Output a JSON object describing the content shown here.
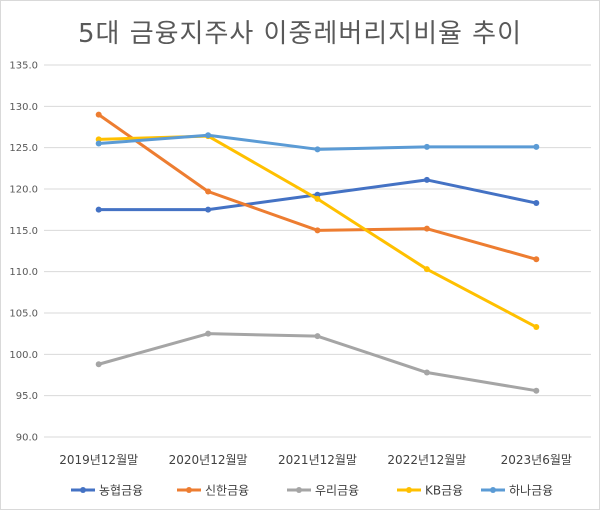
{
  "chart_data": {
    "type": "line",
    "title": "5대 금융지주사 이중레버리지비율 추이",
    "categories": [
      "2019년12월말",
      "2020년12월말",
      "2021년12월말",
      "2022년12월말",
      "2023년6월말"
    ],
    "ylim": [
      90,
      135
    ],
    "yticks": [
      "135.0",
      "130.0",
      "125.0",
      "120.0",
      "115.0",
      "110.0",
      "105.0",
      "100.0",
      "95.0",
      "90.0"
    ],
    "grid": true,
    "legend": "bottom",
    "series": [
      {
        "name": "농협금융",
        "color": "#4472c4",
        "values": [
          117.5,
          117.5,
          119.3,
          121.1,
          118.3
        ]
      },
      {
        "name": "신한금융",
        "color": "#ed7d31",
        "values": [
          129.0,
          119.7,
          115.0,
          115.2,
          111.5
        ]
      },
      {
        "name": "우리금융",
        "color": "#a5a5a5",
        "values": [
          98.8,
          102.5,
          102.2,
          97.8,
          95.6
        ]
      },
      {
        "name": "KB금융",
        "color": "#ffc000",
        "values": [
          126.0,
          126.4,
          118.8,
          110.3,
          103.3
        ]
      },
      {
        "name": "하나금융",
        "color": "#5b9bd5",
        "values": [
          125.5,
          126.5,
          124.8,
          125.1,
          125.1
        ]
      }
    ]
  }
}
